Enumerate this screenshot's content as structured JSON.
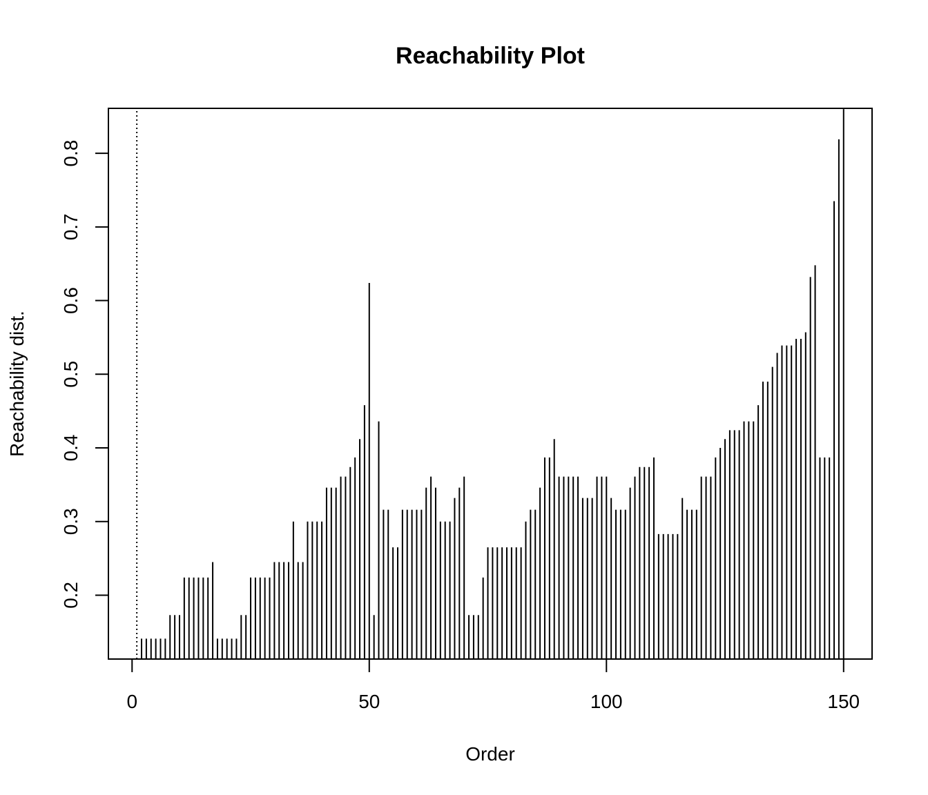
{
  "chart_data": {
    "type": "bar",
    "title": "Reachability Plot",
    "xlabel": "Order",
    "ylabel": "Reachability dist.",
    "xlim": [
      -4.99,
      156.0
    ],
    "ylim": [
      0.1133,
      0.861
    ],
    "x_ticks": [
      0,
      50,
      100,
      150
    ],
    "y_ticks": [
      0.2,
      0.3,
      0.4,
      0.5,
      0.6,
      0.7,
      0.8
    ],
    "x_tick_labels": [
      "0",
      "50",
      "100",
      "150"
    ],
    "y_tick_labels": [
      "0.2",
      "0.3",
      "0.4",
      "0.5",
      "0.6",
      "0.7",
      "0.8"
    ],
    "grid": false,
    "infinite_marker": {
      "order": 1,
      "style": "dotted",
      "top": 0.861
    },
    "order": [
      2,
      3,
      4,
      5,
      6,
      7,
      8,
      9,
      10,
      11,
      12,
      13,
      14,
      15,
      16,
      17,
      18,
      19,
      20,
      21,
      22,
      23,
      24,
      25,
      26,
      27,
      28,
      29,
      30,
      31,
      32,
      33,
      34,
      35,
      36,
      37,
      38,
      39,
      40,
      41,
      42,
      43,
      44,
      45,
      46,
      47,
      48,
      49,
      50,
      51,
      52,
      53,
      54,
      55,
      56,
      57,
      58,
      59,
      60,
      61,
      62,
      63,
      64,
      65,
      66,
      67,
      68,
      69,
      70,
      71,
      72,
      73,
      74,
      75,
      76,
      77,
      78,
      79,
      80,
      81,
      82,
      83,
      84,
      85,
      86,
      87,
      88,
      89,
      90,
      91,
      92,
      93,
      94,
      95,
      96,
      97,
      98,
      99,
      100,
      101,
      102,
      103,
      104,
      105,
      106,
      107,
      108,
      109,
      110,
      111,
      112,
      113,
      114,
      115,
      116,
      117,
      118,
      119,
      120,
      121,
      122,
      123,
      124,
      125,
      126,
      127,
      128,
      129,
      130,
      131,
      132,
      133,
      134,
      135,
      136,
      137,
      138,
      139,
      140,
      141,
      142,
      143,
      144,
      145,
      146,
      147,
      148,
      149,
      150
    ],
    "values": [
      0.141,
      0.141,
      0.141,
      0.141,
      0.141,
      0.141,
      0.173,
      0.173,
      0.173,
      0.224,
      0.224,
      0.224,
      0.224,
      0.224,
      0.224,
      0.245,
      0.141,
      0.141,
      0.141,
      0.141,
      0.141,
      0.173,
      0.173,
      0.224,
      0.224,
      0.224,
      0.224,
      0.224,
      0.245,
      0.245,
      0.245,
      0.245,
      0.3,
      0.245,
      0.245,
      0.3,
      0.3,
      0.3,
      0.3,
      0.346,
      0.346,
      0.346,
      0.361,
      0.361,
      0.374,
      0.387,
      0.412,
      0.458,
      0.624,
      0.173,
      0.436,
      0.316,
      0.316,
      0.265,
      0.265,
      0.316,
      0.316,
      0.316,
      0.316,
      0.316,
      0.346,
      0.361,
      0.346,
      0.3,
      0.3,
      0.3,
      0.332,
      0.346,
      0.361,
      0.173,
      0.173,
      0.173,
      0.224,
      0.265,
      0.265,
      0.265,
      0.265,
      0.265,
      0.265,
      0.265,
      0.265,
      0.3,
      0.316,
      0.316,
      0.346,
      0.387,
      0.387,
      0.412,
      0.361,
      0.361,
      0.361,
      0.361,
      0.361,
      0.332,
      0.332,
      0.332,
      0.361,
      0.361,
      0.361,
      0.332,
      0.316,
      0.316,
      0.316,
      0.346,
      0.361,
      0.374,
      0.374,
      0.374,
      0.387,
      0.283,
      0.283,
      0.283,
      0.283,
      0.283,
      0.332,
      0.316,
      0.316,
      0.316,
      0.361,
      0.361,
      0.361,
      0.387,
      0.4,
      0.412,
      0.424,
      0.424,
      0.424,
      0.436,
      0.436,
      0.436,
      0.458,
      0.49,
      0.49,
      0.51,
      0.529,
      0.539,
      0.539,
      0.539,
      0.548,
      0.548,
      0.557,
      0.632,
      0.648,
      0.387,
      0.387,
      0.387,
      0.735,
      0.819,
      0.86
    ],
    "bar_color": "#000000",
    "background": "#ffffff"
  }
}
